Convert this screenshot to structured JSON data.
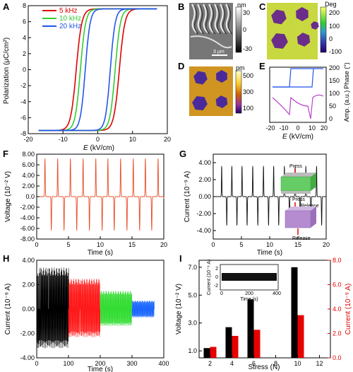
{
  "panels": {
    "A": {
      "label": "A",
      "xlabel_italic": "E",
      "xlabel_unit": " (kV/cm)",
      "ylabel": "Polarization (μC/cm²)",
      "xticks": [
        "-20",
        "-10",
        "0",
        "10",
        "20"
      ],
      "yticks": [
        "8",
        "6",
        "4",
        "2",
        "0",
        "-2",
        "-4",
        "-6",
        "-8"
      ],
      "legend": [
        "5 kHz",
        "10 kHz",
        "20 kHz"
      ]
    },
    "B": {
      "label": "B",
      "cbar_unit": "nm",
      "cbar_ticks": [
        "30",
        "0",
        "-30"
      ],
      "scale": "3 μm"
    },
    "C": {
      "label": "C",
      "cbar_unit": "Deg",
      "cbar_ticks": [
        "200",
        "100",
        "0",
        "-100"
      ]
    },
    "D": {
      "label": "D",
      "cbar_unit": "pm",
      "cbar_ticks": [
        "500",
        "300",
        "100"
      ]
    },
    "E": {
      "label": "E",
      "xlabel_italic": "E",
      "xlabel_unit": " (kV/cm)",
      "ylabel_left": "Amp. (a.u.)",
      "ylabel_right": "Phase (°)",
      "xticks": [
        "-20",
        "-10",
        "0",
        "10",
        "20"
      ],
      "yticks_right": [
        "200",
        "150",
        "100",
        "50",
        "0"
      ]
    },
    "F": {
      "label": "F",
      "xlabel": "Time (s)",
      "ylabel": "Voltage (10⁻² V)",
      "xticks": [
        "0",
        "5",
        "10",
        "15",
        "20"
      ],
      "yticks": [
        "8.00",
        "6.00",
        "4.00",
        "2.00",
        "0.0",
        "-2.00",
        "-4.00",
        "-6.00",
        "-8.00"
      ]
    },
    "G": {
      "label": "G",
      "xlabel": "Time (s)",
      "ylabel": "Current (10⁻⁹ A)",
      "xticks": [
        "0",
        "5",
        "10",
        "15",
        "20"
      ],
      "yticks": [
        "4.00",
        "2.00",
        "0.00",
        "-2.00",
        "-4.00"
      ],
      "annot": {
        "press": "Press",
        "release1": "Release",
        "press2": "Press",
        "release2": "Release"
      }
    },
    "H": {
      "label": "H",
      "xlabel": "Time (s)",
      "ylabel": "Current (10⁻⁹ A)",
      "xticks": [
        "0",
        "100",
        "200",
        "300",
        "400"
      ],
      "yticks": [
        "4.00",
        "2.00",
        "0.00",
        "-2.00",
        "-4.00"
      ],
      "colors": [
        "#000000",
        "#ff1a1a",
        "#33dd33",
        "#1a66ff"
      ]
    },
    "I": {
      "label": "I",
      "xlabel": "Stress (N)",
      "ylabel_left": "Voltage (10⁻² V)",
      "ylabel_right": "Current (10⁻⁹ A)",
      "xticks": [
        "2",
        "4",
        "6",
        "8",
        "10",
        "12"
      ],
      "yticks_left": [
        "7.0",
        "5.0",
        "3.0",
        "1.0"
      ],
      "yticks_right": [
        "8.0",
        "6.0",
        "4.0",
        "2.0",
        "0.0"
      ],
      "inset": {
        "ylabel": "Current (10⁻⁹ A)",
        "xlabel": "Time (s)",
        "xticks": [
          "0",
          "200",
          "400"
        ],
        "yticks": [
          "2",
          "0",
          "-2"
        ]
      }
    }
  },
  "chart_data": [
    {
      "panel": "I",
      "type": "bar",
      "x": [
        2,
        4,
        6,
        10
      ],
      "series": [
        {
          "name": "Voltage (10⁻² V)",
          "values": [
            1.2,
            2.7,
            4.7,
            7.0
          ],
          "color": "#000000"
        },
        {
          "name": "Current (10⁻⁹ A)",
          "values": [
            0.9,
            1.8,
            2.3,
            3.5
          ],
          "color": "#e60000"
        }
      ],
      "xlabel": "Stress (N)",
      "ylim_left": [
        0.5,
        7.5
      ],
      "ylim_right": [
        0,
        8
      ]
    },
    {
      "panel": "A",
      "type": "line",
      "xlabel": "E (kV/cm)",
      "ylabel": "Polarization (μC/cm²)",
      "xlim": [
        -20,
        20
      ],
      "ylim": [
        -8,
        8
      ],
      "series": [
        {
          "name": "5 kHz",
          "coercive": 6.2,
          "color": "#e00000"
        },
        {
          "name": "10 kHz",
          "coercive": 5.0,
          "color": "#33cc33"
        },
        {
          "name": "20 kHz",
          "coercive": 3.6,
          "color": "#2255ee"
        }
      ]
    }
  ]
}
